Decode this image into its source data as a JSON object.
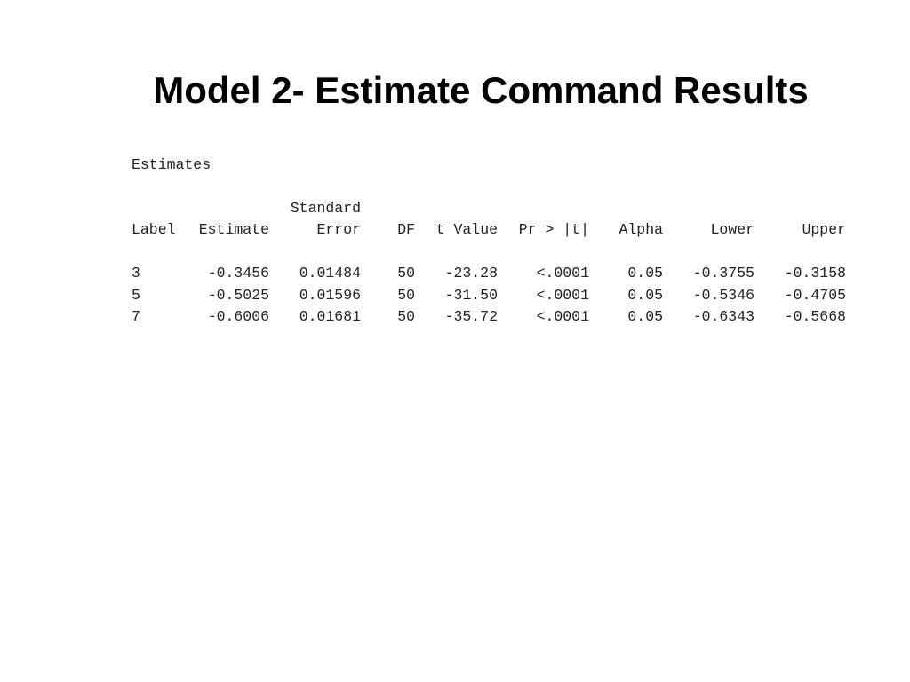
{
  "title": "Model 2- Estimate Command Results",
  "section": "Estimates",
  "table": {
    "headers": [
      [
        "Label"
      ],
      [
        "Estimate"
      ],
      [
        "Standard",
        "Error"
      ],
      [
        "DF"
      ],
      [
        "t Value"
      ],
      [
        "Pr > |t|"
      ],
      [
        "Alpha"
      ],
      [
        "Lower"
      ],
      [
        "Upper"
      ]
    ],
    "rows": [
      [
        "3",
        "-0.3456",
        "0.01484",
        "50",
        "-23.28",
        "<.0001",
        "0.05",
        "-0.3755",
        "-0.3158"
      ],
      [
        "5",
        "-0.5025",
        "0.01596",
        "50",
        "-31.50",
        "<.0001",
        "0.05",
        "-0.5346",
        "-0.4705"
      ],
      [
        "7",
        "-0.6006",
        "0.01681",
        "50",
        "-35.72",
        "<.0001",
        "0.05",
        "-0.6343",
        "-0.5668"
      ]
    ]
  }
}
